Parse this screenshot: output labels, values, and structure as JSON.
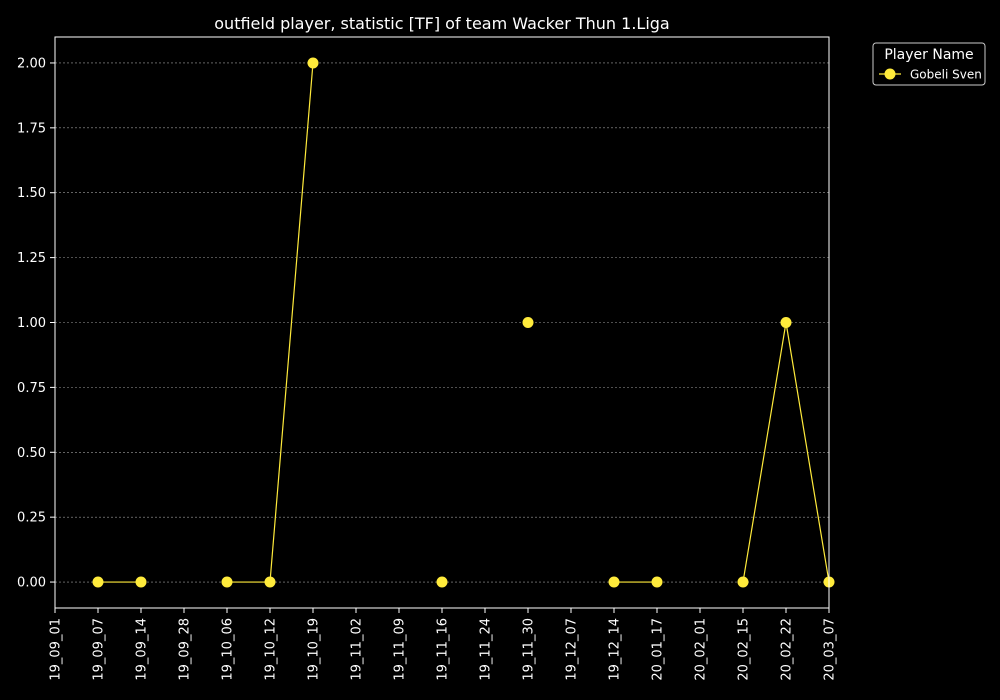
{
  "chart_data": {
    "type": "line",
    "title": "outfield player, statistic [TF] of team Wacker Thun 1.Liga",
    "xlabel": "",
    "ylabel": "",
    "categories": [
      "19_09_01",
      "19_09_07",
      "19_09_14",
      "19_09_28",
      "19_10_06",
      "19_10_12",
      "19_10_19",
      "19_11_02",
      "19_11_09",
      "19_11_16",
      "19_11_24",
      "19_11_30",
      "19_12_07",
      "19_12_14",
      "20_01_17",
      "20_02_01",
      "20_02_15",
      "20_02_22",
      "20_03_07"
    ],
    "yticks": [
      "0.00",
      "0.25",
      "0.50",
      "0.75",
      "1.00",
      "1.25",
      "1.50",
      "1.75",
      "2.00"
    ],
    "ylim": [
      -0.1,
      2.1
    ],
    "grid": true,
    "legend": {
      "title": "Player Name",
      "placement": "outside-top-right"
    },
    "series": [
      {
        "name": "Gobeli Sven",
        "color": "#ffeb3b",
        "values": [
          null,
          0,
          0,
          null,
          0,
          0,
          2,
          null,
          null,
          0,
          null,
          1,
          null,
          0,
          0,
          null,
          0,
          1,
          0
        ]
      }
    ]
  }
}
